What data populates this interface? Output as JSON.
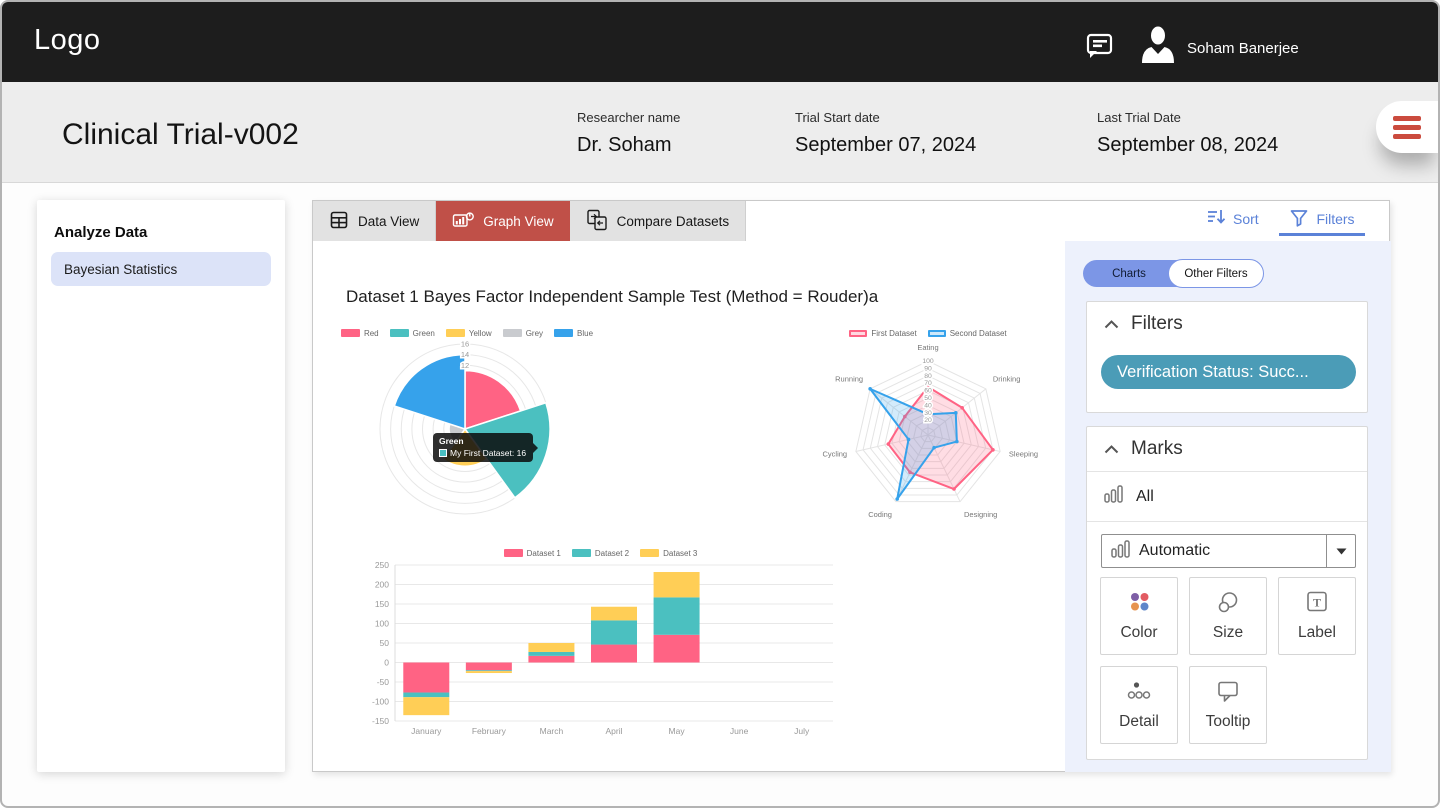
{
  "header": {
    "logo": "Logo",
    "user_name": "Soham Banerjee"
  },
  "subheader": {
    "title": "Clinical Trial-v002",
    "researcher": {
      "label": "Researcher name",
      "value": "Dr. Soham"
    },
    "trial_start": {
      "label": "Trial Start date",
      "value": "September 07, 2024"
    },
    "trial_last": {
      "label": "Last Trial Date",
      "value": "September 08, 2024"
    }
  },
  "sidebar": {
    "heading": "Analyze Data",
    "items": [
      {
        "label": "Bayesian Statistics"
      }
    ]
  },
  "tabs": [
    {
      "label": "Data View",
      "active": false
    },
    {
      "label": "Graph View",
      "active": true
    },
    {
      "label": "Compare Datasets",
      "active": false
    }
  ],
  "toolbar": {
    "sort_label": "Sort",
    "filters_label": "Filters",
    "accent_color": "#5b82d8"
  },
  "graph_view": {
    "title": "Dataset 1 Bayes Factor Independent Sample Test (Method = Rouder)a"
  },
  "filter_panel": {
    "toggle": {
      "left_label": "Charts",
      "right_label": "Other Filters",
      "active_color": "#7c96e6"
    },
    "filters_card": {
      "title": "Filters",
      "chip_label": "Verification Status: Succ...",
      "chip_color": "#4b9cb7"
    },
    "marks_card": {
      "title": "Marks",
      "all_label": "All",
      "dropdown_value": "Automatic",
      "buttons": [
        {
          "label": "Color"
        },
        {
          "label": "Size"
        },
        {
          "label": "Label"
        },
        {
          "label": "Detail"
        },
        {
          "label": "Tooltip"
        }
      ]
    }
  },
  "chart_data": [
    {
      "type": "polarArea",
      "labels": [
        "Red",
        "Green",
        "Yellow",
        "Grey",
        "Blue"
      ],
      "values": [
        11,
        16,
        7,
        3,
        14
      ],
      "colors": [
        "#FF6384",
        "#4BC0C0",
        "#FFCE56",
        "#C9CBCF",
        "#36A2EB"
      ],
      "rmax": 16,
      "tick_step": 2,
      "visible_ticks": [
        12,
        14,
        16
      ],
      "legend_position": "top",
      "tooltip": {
        "title": "Green",
        "label": "My First Dataset: 16",
        "color": "#4BC0C0"
      }
    },
    {
      "type": "radar",
      "labels": [
        "Eating",
        "Drinking",
        "Sleeping",
        "Designing",
        "Coding",
        "Cycling",
        "Running"
      ],
      "series": [
        {
          "name": "First Dataset",
          "color": "#FF6384",
          "values": [
            65,
            59,
            90,
            81,
            56,
            55,
            40
          ]
        },
        {
          "name": "Second Dataset",
          "color": "#36A2EB",
          "values": [
            28,
            48,
            40,
            19,
            96,
            27,
            100
          ]
        }
      ],
      "rmax": 100,
      "tick_min": 20,
      "tick_step": 10,
      "grid": true,
      "legend_position": "top"
    },
    {
      "type": "bar",
      "stacked": true,
      "categories": [
        "January",
        "February",
        "March",
        "April",
        "May",
        "June",
        "July"
      ],
      "series": [
        {
          "name": "Dataset 1",
          "color": "#FF6384",
          "values": [
            -77,
            -20,
            17,
            46,
            71,
            0,
            0
          ]
        },
        {
          "name": "Dataset 2",
          "color": "#4BC0C0",
          "values": [
            -12,
            -2,
            10,
            62,
            96,
            0,
            0
          ]
        },
        {
          "name": "Dataset 3",
          "color": "#FFCE56",
          "values": [
            -46,
            -5,
            23,
            35,
            65,
            0,
            0
          ]
        }
      ],
      "ylim": [
        -150,
        250
      ],
      "ytick_step": 50,
      "grid": true,
      "legend_position": "top"
    }
  ]
}
